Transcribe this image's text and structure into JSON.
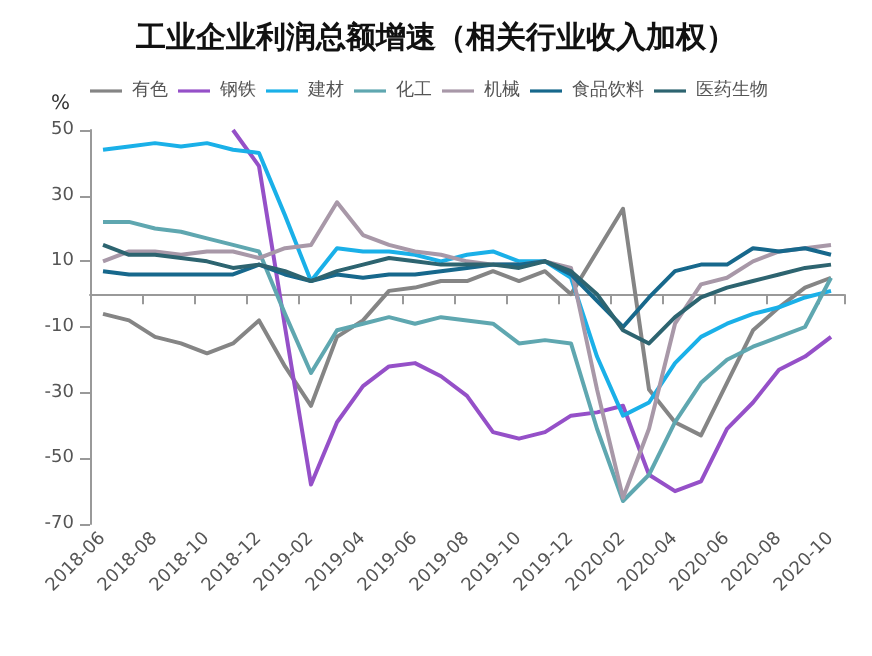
{
  "chart_data": {
    "type": "line",
    "title": "工业企业利润总额增速（相关行业收入加权）",
    "ylabel": "%",
    "categories": [
      "2018-06",
      null,
      "2018-08",
      null,
      "2018-10",
      null,
      "2018-12",
      null,
      "2019-02",
      null,
      "2019-04",
      null,
      "2019-06",
      null,
      "2019-08",
      null,
      "2019-10",
      null,
      "2019-12",
      null,
      "2020-02",
      null,
      "2020-04",
      null,
      "2020-06",
      null,
      "2020-08",
      null,
      "2020-10"
    ],
    "series": [
      {
        "name": "有色",
        "color": "#858585",
        "values": [
          -6,
          -8,
          -13,
          -15,
          -18,
          -15,
          -8,
          -22,
          -34,
          -13,
          -8,
          1,
          2,
          4,
          4,
          7,
          4,
          7,
          0,
          13,
          26,
          -29,
          -39,
          -43,
          -27,
          -11,
          -4,
          2,
          5
        ]
      },
      {
        "name": "钢铁",
        "color": "#9550c8",
        "values": [
          null,
          null,
          null,
          null,
          null,
          50,
          39,
          -10,
          -58,
          -39,
          -28,
          -22,
          -21,
          -25,
          -31,
          -42,
          -44,
          -42,
          -37,
          -36,
          -34,
          -55,
          -60,
          -57,
          -41,
          -33,
          -23,
          -19,
          -13
        ]
      },
      {
        "name": "建材",
        "color": "#1ab0e8",
        "values": [
          44,
          45,
          46,
          45,
          46,
          44,
          43,
          24,
          4,
          14,
          13,
          13,
          12,
          10,
          12,
          13,
          10,
          10,
          5,
          -19,
          -37,
          -33,
          -21,
          -13,
          -9,
          -6,
          -4,
          -1,
          1
        ]
      },
      {
        "name": "化工",
        "color": "#5fa7b0",
        "values": [
          22,
          22,
          20,
          19,
          17,
          15,
          13,
          -6,
          -24,
          -11,
          -9,
          -7,
          -9,
          -7,
          -8,
          -9,
          -15,
          -14,
          -15,
          -41,
          -63,
          -55,
          -39,
          -27,
          -20,
          -16,
          -13,
          -10,
          5
        ]
      },
      {
        "name": "机械",
        "color": "#a898a8",
        "values": [
          10,
          13,
          13,
          12,
          13,
          13,
          11,
          14,
          15,
          28,
          18,
          15,
          13,
          12,
          10,
          9,
          9,
          10,
          8,
          -29,
          -62,
          -41,
          -9,
          3,
          5,
          10,
          13,
          14,
          15
        ]
      },
      {
        "name": "食品饮料",
        "color": "#17688c",
        "values": [
          7,
          6,
          6,
          6,
          6,
          6,
          9,
          6,
          4,
          6,
          5,
          6,
          6,
          7,
          8,
          9,
          9,
          10,
          6,
          -2,
          -10,
          -1,
          7,
          9,
          9,
          14,
          13,
          14,
          12
        ]
      },
      {
        "name": "医药生物",
        "color": "#2d6470",
        "values": [
          15,
          12,
          12,
          11,
          10,
          8,
          9,
          7,
          4,
          7,
          9,
          11,
          10,
          9,
          9,
          9,
          8,
          10,
          7,
          0,
          -11,
          -15,
          -7,
          -1,
          2,
          4,
          6,
          8,
          9
        ]
      }
    ],
    "ylim": [
      -70,
      50
    ],
    "yticks": [
      -70,
      -50,
      -30,
      -10,
      10,
      30,
      50
    ],
    "grid": false,
    "legend": "top",
    "marker": "none",
    "line_style": "solid"
  }
}
